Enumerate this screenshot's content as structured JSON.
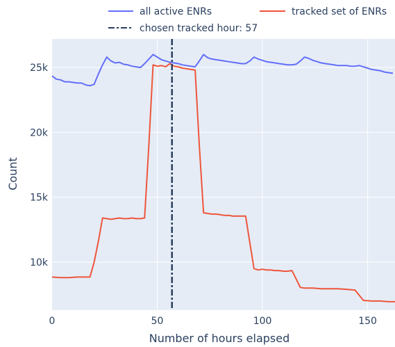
{
  "chart_data": {
    "type": "line",
    "title": "",
    "xlabel": "Number of hours elapsed",
    "ylabel": "Count",
    "xlim": [
      0,
      163
    ],
    "ylim": [
      6300,
      27200
    ],
    "x_ticks": [
      0,
      50,
      100,
      150
    ],
    "x_tick_labels": [
      "0",
      "50",
      "100",
      "150"
    ],
    "y_ticks": [
      10000,
      15000,
      20000,
      25000
    ],
    "y_tick_labels": [
      "10k",
      "15k",
      "20k",
      "25k"
    ],
    "grid": true,
    "legend_position": "top",
    "colors": {
      "plot_bg": "#e5ecf6",
      "grid": "#ffffff",
      "all_active": "#636efa",
      "tracked": "#ef553b",
      "vline": "#2a3f5f",
      "text": "#2a3f5f"
    },
    "series": [
      {
        "name": "all active ENRs",
        "x": [
          0,
          2,
          4,
          6,
          8,
          10,
          12,
          14,
          16,
          18,
          20,
          22,
          24,
          26,
          28,
          30,
          32,
          34,
          36,
          38,
          40,
          42,
          44,
          46,
          48,
          50,
          52,
          54,
          56,
          58,
          60,
          62,
          64,
          66,
          68,
          70,
          72,
          74,
          76,
          78,
          80,
          82,
          84,
          86,
          88,
          90,
          92,
          94,
          96,
          98,
          100,
          102,
          104,
          106,
          108,
          110,
          112,
          114,
          116,
          118,
          120,
          122,
          124,
          126,
          128,
          130,
          132,
          134,
          136,
          138,
          140,
          142,
          144,
          146,
          148,
          150,
          152,
          154,
          156,
          158,
          160,
          162
        ],
        "y": [
          24350,
          24100,
          24050,
          23900,
          23900,
          23850,
          23800,
          23800,
          23650,
          23600,
          23700,
          24500,
          25200,
          25800,
          25500,
          25350,
          25400,
          25250,
          25200,
          25100,
          25050,
          25000,
          25300,
          25650,
          26000,
          25800,
          25600,
          25500,
          25400,
          25350,
          25300,
          25200,
          25150,
          25100,
          25050,
          25500,
          26000,
          25750,
          25650,
          25600,
          25550,
          25500,
          25450,
          25400,
          25350,
          25300,
          25300,
          25500,
          25800,
          25650,
          25550,
          25450,
          25400,
          25350,
          25300,
          25250,
          25200,
          25200,
          25250,
          25500,
          25800,
          25700,
          25550,
          25450,
          25350,
          25300,
          25250,
          25200,
          25150,
          25150,
          25150,
          25100,
          25100,
          25150,
          25050,
          24950,
          24850,
          24800,
          24750,
          24650,
          24600,
          24550
        ]
      },
      {
        "name": "tracked set of ENRs",
        "x": [
          0,
          4,
          8,
          12,
          16,
          18,
          20,
          22,
          24,
          26,
          28,
          30,
          32,
          34,
          36,
          38,
          40,
          42,
          44,
          46,
          48,
          50,
          52,
          54,
          56,
          58,
          60,
          62,
          64,
          66,
          68,
          70,
          72,
          74,
          76,
          78,
          80,
          82,
          84,
          86,
          88,
          90,
          92,
          94,
          96,
          98,
          100,
          102,
          104,
          106,
          108,
          110,
          112,
          114,
          116,
          118,
          120,
          124,
          128,
          132,
          136,
          140,
          144,
          148,
          152,
          156,
          160,
          163
        ],
        "y": [
          8850,
          8800,
          8800,
          8850,
          8850,
          8850,
          10000,
          11600,
          13400,
          13350,
          13300,
          13350,
          13400,
          13350,
          13350,
          13400,
          13350,
          13350,
          13400,
          19000,
          25200,
          25100,
          25150,
          25050,
          25300,
          25100,
          25050,
          24950,
          24900,
          24850,
          24800,
          19000,
          13800,
          13750,
          13700,
          13700,
          13650,
          13600,
          13600,
          13550,
          13550,
          13550,
          13550,
          11500,
          9500,
          9400,
          9450,
          9400,
          9400,
          9350,
          9350,
          9300,
          9300,
          9350,
          8700,
          8050,
          8000,
          8000,
          7950,
          7950,
          7950,
          7900,
          7850,
          7050,
          7000,
          7000,
          6950,
          6950
        ]
      }
    ],
    "vline": {
      "x": 57,
      "label": "chosen tracked hour: 57"
    }
  }
}
